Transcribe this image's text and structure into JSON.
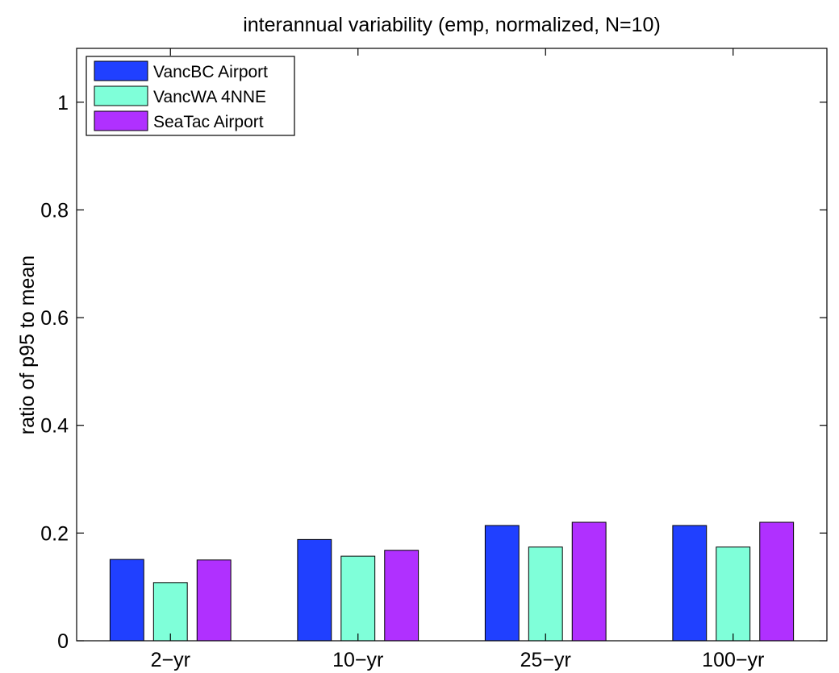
{
  "chart_data": {
    "type": "bar",
    "title": "interannual variability (emp, normalized, N=10)",
    "xlabel": "",
    "ylabel": "ratio of p95 to mean",
    "categories": [
      "2−yr",
      "10−yr",
      "25−yr",
      "100−yr"
    ],
    "series": [
      {
        "name": "VancBC Airport",
        "color": "#2040ff",
        "values": [
          0.151,
          0.188,
          0.214,
          0.214
        ]
      },
      {
        "name": "VancWA 4NNE",
        "color": "#7fffd9",
        "values": [
          0.108,
          0.157,
          0.174,
          0.174
        ]
      },
      {
        "name": "SeaTac Airport",
        "color": "#b030ff",
        "values": [
          0.15,
          0.168,
          0.22,
          0.22
        ]
      }
    ],
    "ylim": [
      0,
      1.1
    ],
    "yticks": [
      0,
      0.2,
      0.4,
      0.6,
      0.8,
      1
    ],
    "ytick_labels": [
      "0",
      "0.2",
      "0.4",
      "0.6",
      "0.8",
      "1"
    ],
    "grid": false,
    "legend_position": "top-left"
  }
}
